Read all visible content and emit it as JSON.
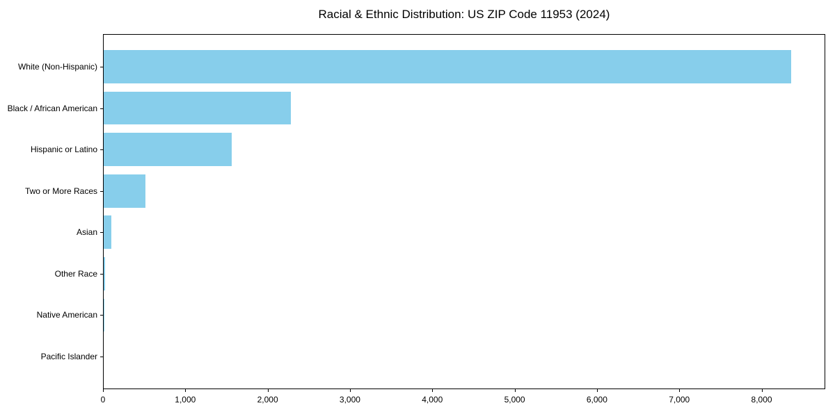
{
  "chart_data": {
    "type": "bar",
    "orientation": "horizontal",
    "title": "Racial & Ethnic Distribution: US ZIP Code 11953 (2024)",
    "categories": [
      "White (Non-Hispanic)",
      "Black / African American",
      "Hispanic or Latino",
      "Two or More Races",
      "Asian",
      "Other Race",
      "Native American",
      "Pacific Islander"
    ],
    "values": [
      8355,
      2285,
      1560,
      512,
      100,
      28,
      10,
      0
    ],
    "xlabel": "",
    "ylabel": "",
    "xlim": [
      0,
      8773
    ],
    "x_ticks": [
      0,
      1000,
      2000,
      3000,
      4000,
      5000,
      6000,
      7000,
      8000
    ],
    "x_tick_labels": [
      "0",
      "1,000",
      "2,000",
      "3,000",
      "4,000",
      "5,000",
      "6,000",
      "7,000",
      "8,000"
    ],
    "bar_color": "#87CEEB",
    "text_color": "#000000",
    "grid": false,
    "legend": null
  }
}
